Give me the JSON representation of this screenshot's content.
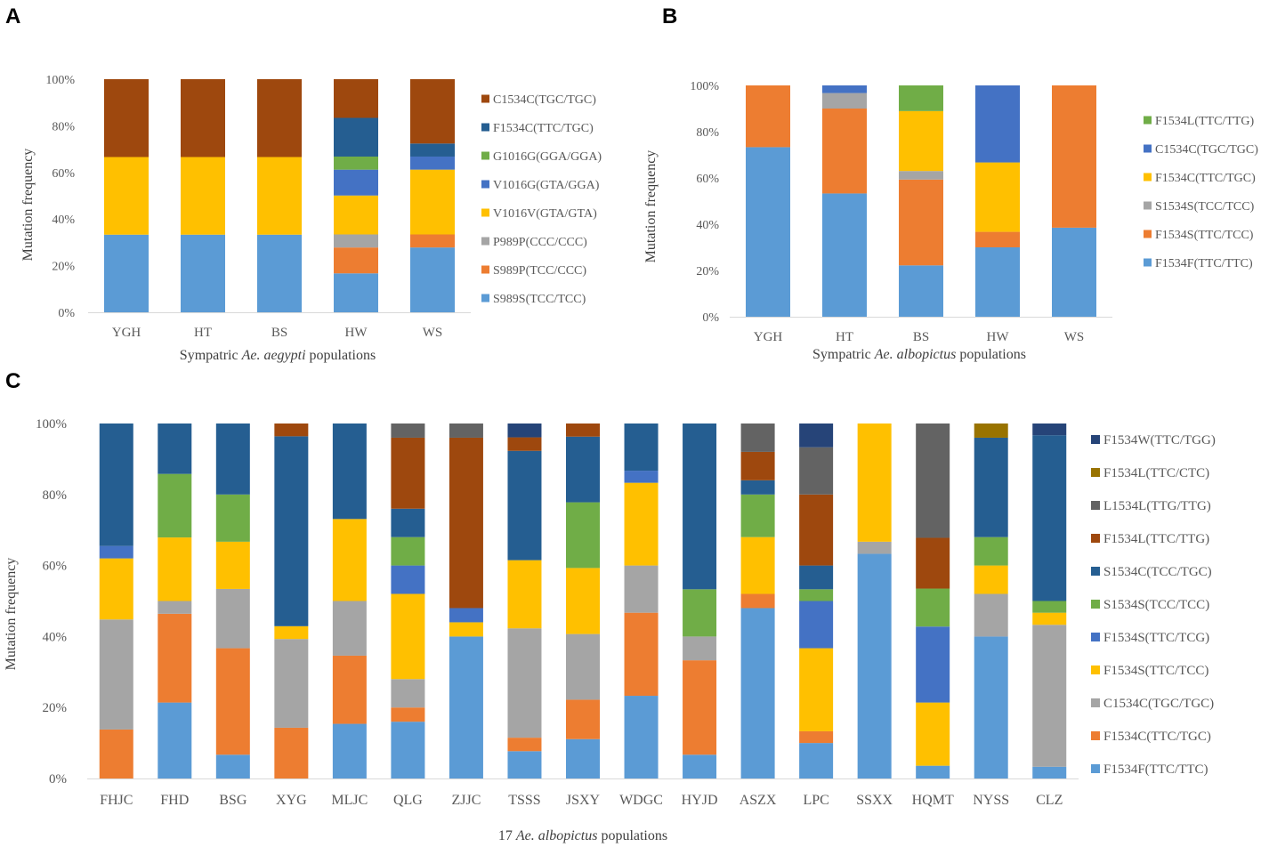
{
  "panels": [
    {
      "letter": "A",
      "ylabel": "Mutation frequency",
      "xlabel_pre": "Sympatric ",
      "xlabel_italic": "Ae. aegypti",
      "xlabel_post": " populations"
    },
    {
      "letter": "B",
      "ylabel": "Mutation frequency",
      "xlabel_pre": "Sympatric ",
      "xlabel_italic": "Ae. albopictus",
      "xlabel_post": " populations"
    },
    {
      "letter": "C",
      "ylabel": "Mutation frequency",
      "xlabel_pre": "17 ",
      "xlabel_italic": "Ae. albopictus",
      "xlabel_post": " populations"
    }
  ],
  "chart_data": [
    {
      "type": "bar",
      "stacked": "percent",
      "panel": "A",
      "title": "",
      "xlabel": "Sympatric Ae. aegypti populations",
      "ylabel": "Mutation frequency",
      "ylim": [
        0,
        100
      ],
      "yticks": [
        "0%",
        "20%",
        "40%",
        "60%",
        "80%",
        "100%"
      ],
      "grid": false,
      "legend_position": "right",
      "categories": [
        "YGH",
        "HT",
        "BS",
        "HW",
        "WS"
      ],
      "series": [
        {
          "name": "S989S(TCC/TCC)",
          "color": "#5B9BD5",
          "values": [
            33.3,
            33.3,
            33.3,
            16.7,
            27.8
          ]
        },
        {
          "name": "S989P(TCC/CCC)",
          "color": "#ED7D31",
          "values": [
            0,
            0,
            0,
            11.1,
            5.6
          ]
        },
        {
          "name": "P989P(CCC/CCC)",
          "color": "#A5A5A5",
          "values": [
            0,
            0,
            0,
            5.6,
            0
          ]
        },
        {
          "name": "V1016V(GTA/GTA)",
          "color": "#FFC000",
          "values": [
            33.3,
            33.3,
            33.3,
            16.7,
            27.8
          ]
        },
        {
          "name": "V1016G(GTA/GGA)",
          "color": "#4472C4",
          "values": [
            0,
            0,
            0,
            11.1,
            5.6
          ]
        },
        {
          "name": "G1016G(GGA/GGA)",
          "color": "#70AD47",
          "values": [
            0,
            0,
            0,
            5.6,
            0
          ]
        },
        {
          "name": "F1534C(TTC/TGC)",
          "color": "#255E91",
          "values": [
            0,
            0,
            0,
            16.6,
            5.6
          ]
        },
        {
          "name": "C1534C(TGC/TGC)",
          "color": "#9E480E",
          "values": [
            33.4,
            33.4,
            33.4,
            16.6,
            27.6
          ]
        }
      ]
    },
    {
      "type": "bar",
      "stacked": "percent",
      "panel": "B",
      "title": "",
      "xlabel": "Sympatric Ae. albopictus populations",
      "ylabel": "Mutation frequency",
      "ylim": [
        0,
        100
      ],
      "yticks": [
        "0%",
        "20%",
        "40%",
        "60%",
        "80%",
        "100%"
      ],
      "grid": false,
      "legend_position": "right",
      "categories": [
        "YGH",
        "HT",
        "BS",
        "HW",
        "WS"
      ],
      "series": [
        {
          "name": "F1534F(TTC/TTC)",
          "color": "#5B9BD5",
          "values": [
            73.3,
            53.3,
            22.2,
            30,
            38.5
          ]
        },
        {
          "name": "F1534S(TTC/TCC)",
          "color": "#ED7D31",
          "values": [
            26.7,
            36.7,
            37.1,
            6.7,
            61.5
          ]
        },
        {
          "name": "S1534S(TCC/TCC)",
          "color": "#A5A5A5",
          "values": [
            0,
            6.7,
            3.7,
            0,
            0
          ]
        },
        {
          "name": "F1534C(TTC/TGC)",
          "color": "#FFC000",
          "values": [
            0,
            0,
            25.9,
            30,
            0
          ]
        },
        {
          "name": "C1534C(TGC/TGC)",
          "color": "#4472C4",
          "values": [
            0,
            3.3,
            0,
            33.3,
            0
          ]
        },
        {
          "name": "F1534L(TTC/TTG)",
          "color": "#70AD47",
          "values": [
            0,
            0,
            11.1,
            0,
            0
          ]
        }
      ]
    },
    {
      "type": "bar",
      "stacked": "percent",
      "panel": "C",
      "title": "",
      "xlabel": "17 Ae. albopictus populations",
      "ylabel": "Mutation frequency",
      "ylim": [
        0,
        100
      ],
      "yticks": [
        "0%",
        "20%",
        "40%",
        "60%",
        "80%",
        "100%"
      ],
      "grid": false,
      "legend_position": "right",
      "categories": [
        "FHJC",
        "FHD",
        "BSG",
        "XYG",
        "MLJC",
        "QLG",
        "ZJJC",
        "TSSS",
        "JSXY",
        "WDGC",
        "HYJD",
        "ASZX",
        "LPC",
        "SSXX",
        "HQMT",
        "NYSS",
        "CLZ"
      ],
      "series": [
        {
          "name": "F1534F(TTC/TTC)",
          "color": "#5B9BD5",
          "values": [
            0,
            21.4,
            6.7,
            0,
            15.4,
            16,
            40,
            7.7,
            11.1,
            23.3,
            6.7,
            48,
            10,
            63.3,
            3.6,
            40,
            3.3
          ]
        },
        {
          "name": "F1534C(TTC/TGC)",
          "color": "#ED7D31",
          "values": [
            13.8,
            25,
            30,
            14.3,
            19.2,
            4,
            0,
            3.8,
            11.1,
            23.4,
            26.6,
            4,
            3.3,
            0,
            0,
            0,
            0
          ]
        },
        {
          "name": "C1534C(TGC/TGC)",
          "color": "#A5A5A5",
          "values": [
            31,
            3.6,
            16.7,
            25,
            15.4,
            8,
            0,
            30.8,
            18.5,
            13.3,
            6.7,
            0,
            0,
            3.4,
            0,
            12,
            40
          ]
        },
        {
          "name": "F1534S(TTC/TCC)",
          "color": "#FFC000",
          "values": [
            17.2,
            17.9,
            13.3,
            3.6,
            23.1,
            24,
            4,
            19.2,
            18.6,
            23.3,
            0,
            16,
            23.4,
            33.3,
            17.8,
            8,
            3.4
          ]
        },
        {
          "name": "F1534S(TTC/TCG)",
          "color": "#4472C4",
          "values": [
            3.5,
            0,
            0,
            0,
            0,
            8,
            4,
            0,
            0,
            3.4,
            0,
            0,
            13.3,
            0,
            21.4,
            0,
            0
          ]
        },
        {
          "name": "S1534S(TCC/TCC)",
          "color": "#70AD47",
          "values": [
            0,
            17.9,
            13.3,
            0,
            0,
            8,
            0,
            0,
            18.5,
            0,
            13.3,
            12,
            3.3,
            0,
            10.7,
            8,
            3.3
          ]
        },
        {
          "name": "S1534C(TCC/TGC)",
          "color": "#255E91",
          "values": [
            34.5,
            14.2,
            20,
            53.5,
            26.9,
            8,
            0,
            30.8,
            18.5,
            13.3,
            46.7,
            4,
            6.7,
            0,
            0,
            28,
            46.7
          ]
        },
        {
          "name": "F1534L(TTC/TTG)",
          "color": "#9E480E",
          "values": [
            0,
            0,
            0,
            3.6,
            0,
            20,
            48,
            3.8,
            3.7,
            0,
            0,
            8,
            20,
            0,
            14.3,
            0,
            0
          ]
        },
        {
          "name": "L1534L(TTG/TTG)",
          "color": "#636363",
          "values": [
            0,
            0,
            0,
            0,
            0,
            4,
            4,
            0,
            0,
            0,
            0,
            8,
            13.3,
            0,
            32.2,
            0,
            0
          ]
        },
        {
          "name": "F1534L(TTC/CTC)",
          "color": "#997300",
          "values": [
            0,
            0,
            0,
            0,
            0,
            0,
            0,
            0,
            0,
            0,
            0,
            0,
            0,
            0,
            0,
            4,
            0
          ]
        },
        {
          "name": "F1534W(TTC/TGG)",
          "color": "#264478",
          "values": [
            0,
            0,
            0,
            0,
            0,
            0,
            0,
            3.9,
            0,
            0,
            0,
            0,
            6.7,
            0,
            0,
            0,
            3.3
          ]
        }
      ]
    }
  ]
}
